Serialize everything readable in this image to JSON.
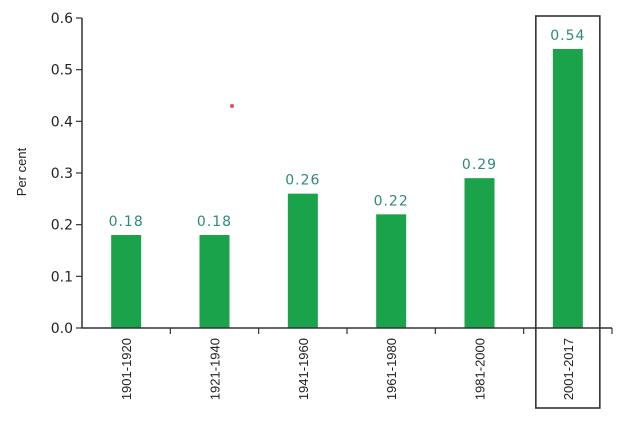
{
  "chart_data": {
    "type": "bar",
    "title": "",
    "xlabel": "",
    "ylabel": "Per cent",
    "categories": [
      "1901-1920",
      "1921-1940",
      "1941-1960",
      "1961-1980",
      "1981-2000",
      "2001-2017"
    ],
    "values": [
      0.18,
      0.18,
      0.26,
      0.22,
      0.29,
      0.54
    ],
    "data_labels": [
      "0.18",
      "0.18",
      "0.26",
      "0.22",
      "0.29",
      "0.54"
    ],
    "ylim": [
      0,
      0.6
    ],
    "yticks": [
      "0.0",
      "0.1",
      "0.2",
      "0.3",
      "0.4",
      "0.5",
      "0.6"
    ],
    "grid": false,
    "legend": "none",
    "highlighted_category": "2001-2017",
    "colors": {
      "bar": "#1aa34a",
      "label": "#2e8a7a",
      "axis": "#333333",
      "stray_marker": "#e0505a"
    }
  }
}
